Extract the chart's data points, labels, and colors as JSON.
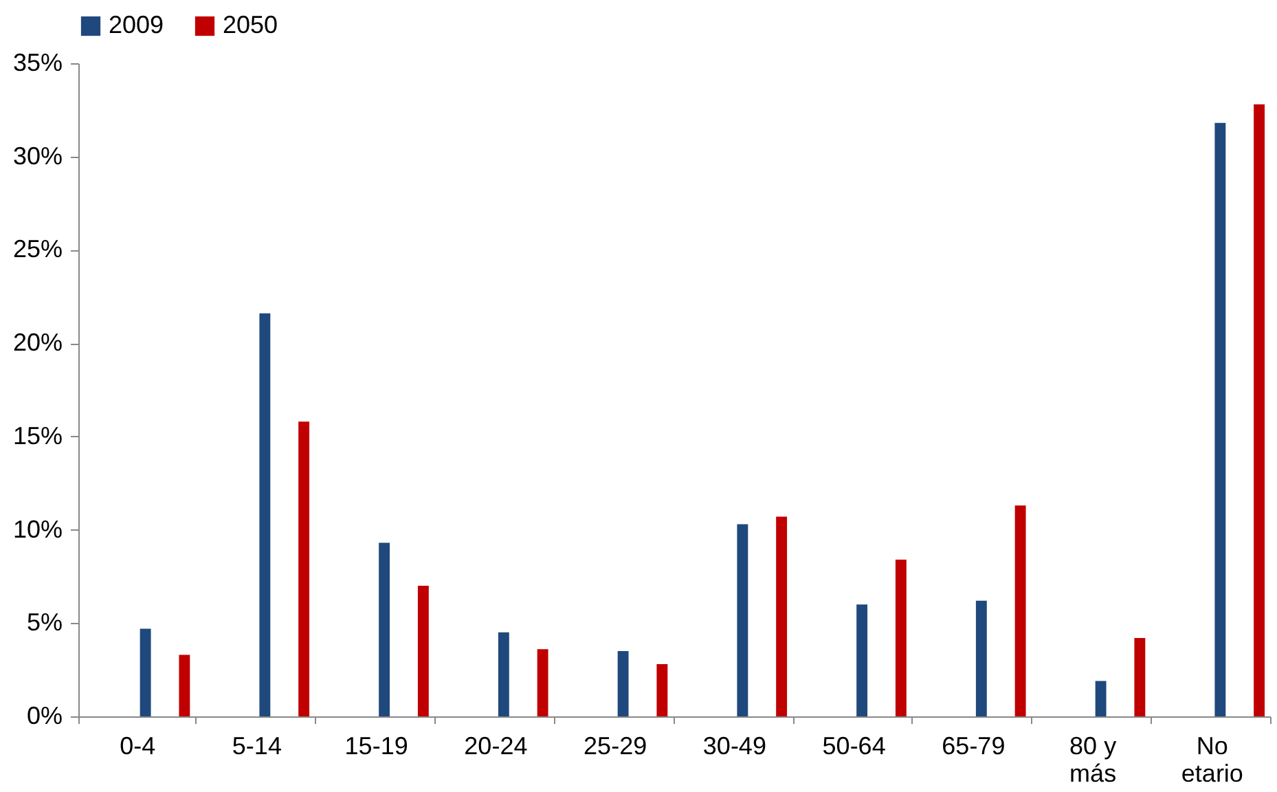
{
  "chart_data": {
    "type": "bar",
    "categories": [
      "0-4",
      "5-14",
      "15-19",
      "20-24",
      "25-29",
      "30-49",
      "50-64",
      "65-79",
      "80 y más",
      "No etario"
    ],
    "series": [
      {
        "name": "2009",
        "color": "#1f497d",
        "values": [
          4.7,
          21.6,
          9.3,
          4.5,
          3.5,
          10.3,
          6.0,
          6.2,
          1.9,
          31.8
        ]
      },
      {
        "name": "2050",
        "color": "#c00000",
        "values": [
          3.3,
          15.8,
          7.0,
          3.6,
          2.8,
          10.7,
          8.4,
          11.3,
          4.2,
          32.8
        ]
      }
    ],
    "ylim": [
      0,
      35
    ],
    "yticks": [
      {
        "value": 0,
        "label": "0%"
      },
      {
        "value": 5,
        "label": "5%"
      },
      {
        "value": 10,
        "label": "10%"
      },
      {
        "value": 15,
        "label": "15%"
      },
      {
        "value": 20,
        "label": "20%"
      },
      {
        "value": 25,
        "label": "25%"
      },
      {
        "value": 30,
        "label": "30%"
      },
      {
        "value": 35,
        "label": "35%"
      }
    ],
    "grid": false,
    "legend": "top"
  }
}
